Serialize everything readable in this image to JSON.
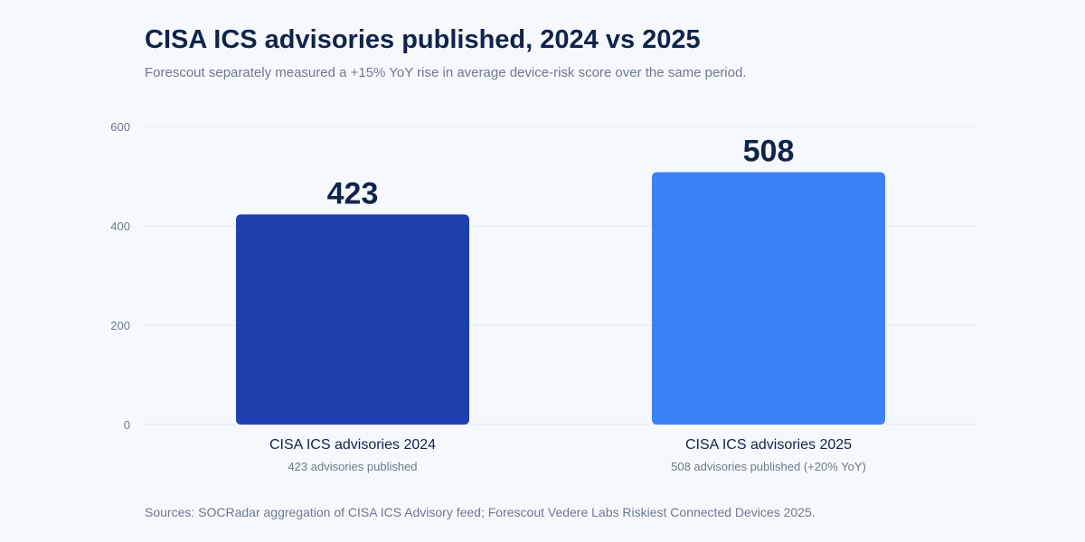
{
  "title": "CISA ICS advisories published, 2024 vs 2025",
  "subtitle": "Forescout separately measured a +15% YoY rise in average device-risk score over the same period.",
  "source": "Sources: SOCRadar aggregation of CISA ICS Advisory feed; Forescout Vedere Labs Riskiest Connected Devices 2025.",
  "colors": {
    "bar_2024": "#1e40af",
    "bar_2025": "#3b82f6",
    "value_label": "#10234b",
    "category_label": "#10234b",
    "sublabel": "#6b7a90",
    "tick": "#6b7a90",
    "grid": "#e3e9f3"
  },
  "chart_data": {
    "type": "bar",
    "categories": [
      "CISA ICS advisories 2024",
      "CISA ICS advisories 2025"
    ],
    "values": [
      423,
      508
    ],
    "value_labels": [
      "423",
      "508"
    ],
    "sublabels": [
      "423 advisories published",
      "508 advisories published (+20% YoY)"
    ],
    "ylim": [
      0,
      600
    ],
    "yticks": [
      0,
      200,
      400,
      600
    ],
    "grid": true,
    "legend": "none"
  }
}
